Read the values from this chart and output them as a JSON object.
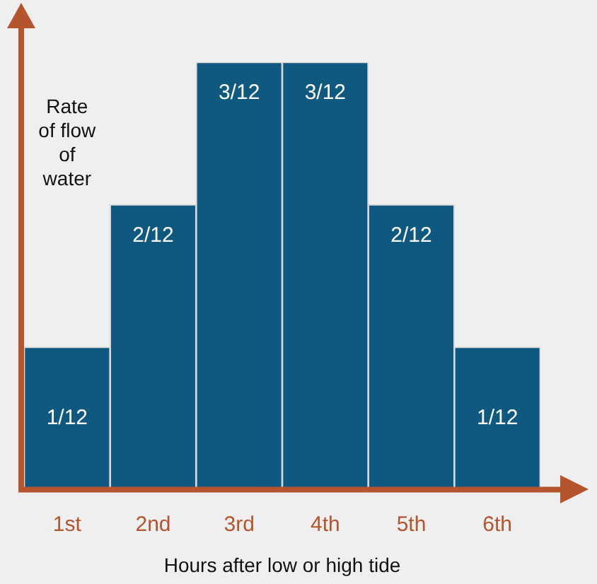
{
  "chart_data": {
    "type": "bar",
    "xlabel": "Hours after low or high tide",
    "ylabel": "Rate of flow of water",
    "categories": [
      "1st",
      "2nd",
      "3rd",
      "4th",
      "5th",
      "6th"
    ],
    "values": [
      0.0833,
      0.1667,
      0.25,
      0.25,
      0.1667,
      0.0833
    ],
    "value_labels": [
      "1/12",
      "2/12",
      "3/12",
      "3/12",
      "2/12",
      "1/12"
    ],
    "tick_labels": "x",
    "color": "#0f5880",
    "grid": false,
    "legend": false
  }
}
